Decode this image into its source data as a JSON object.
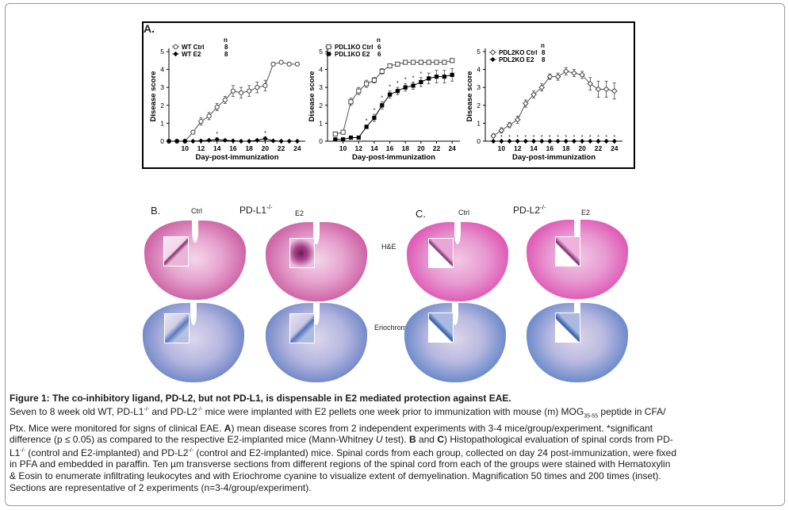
{
  "panel_a": {
    "label": "A.",
    "n_header": "n",
    "x_axis_label": "Day-post-immunization",
    "y_axis_label": "Disease score"
  },
  "chart_data": [
    {
      "type": "line",
      "title": "",
      "xlabel": "Day-post-immunization",
      "ylabel": "Disease score",
      "xlim": [
        8,
        25
      ],
      "ylim": [
        0,
        5
      ],
      "x_ticks": [
        10,
        12,
        14,
        16,
        18,
        20,
        22,
        24
      ],
      "y_ticks": [
        0,
        1,
        2,
        3,
        4,
        5
      ],
      "legend_position": "top-left",
      "series": [
        {
          "name": "WT Ctrl",
          "n": "8",
          "marker": "open-circle",
          "x": [
            8,
            9,
            10,
            11,
            12,
            13,
            14,
            15,
            16,
            17,
            18,
            19,
            20,
            21,
            22,
            23,
            24
          ],
          "values": [
            0,
            0,
            0,
            0.5,
            1.1,
            1.4,
            1.9,
            2.3,
            2.8,
            2.7,
            2.8,
            3.0,
            3.1,
            4.3,
            4.4,
            4.3,
            4.3
          ],
          "errors": [
            0,
            0,
            0,
            0.1,
            0.2,
            0.2,
            0.2,
            0.2,
            0.3,
            0.3,
            0.3,
            0.3,
            0.3,
            0.1,
            0,
            0.1,
            0.1
          ]
        },
        {
          "name": "WT E2",
          "n": "8",
          "marker": "filled-diamond",
          "x": [
            8,
            9,
            10,
            11,
            12,
            13,
            14,
            15,
            16,
            17,
            18,
            19,
            20,
            21,
            22,
            23,
            24
          ],
          "values": [
            0,
            0,
            0,
            0,
            0.02,
            0.05,
            0.1,
            0.05,
            0.02,
            0,
            0,
            0.05,
            0.15,
            0.02,
            0,
            0,
            0
          ],
          "errors": [
            0,
            0,
            0,
            0,
            0.02,
            0.04,
            0.08,
            0.04,
            0.02,
            0,
            0,
            0.04,
            0.08,
            0.02,
            0,
            0,
            0
          ]
        }
      ],
      "annotations": [
        {
          "x": 14,
          "text": "*"
        },
        {
          "x": 20,
          "text": "*"
        }
      ]
    },
    {
      "type": "line",
      "title": "",
      "xlabel": "Day-post-immunization",
      "ylabel": "Disease score",
      "xlim": [
        8,
        25
      ],
      "ylim": [
        0,
        5
      ],
      "x_ticks": [
        10,
        12,
        14,
        16,
        18,
        20,
        22,
        24
      ],
      "y_ticks": [
        0,
        1,
        2,
        3,
        4,
        5
      ],
      "legend_position": "top-left",
      "series": [
        {
          "name": "PDL1KO Ctrl",
          "n": "6",
          "marker": "open-square",
          "x": [
            9,
            10,
            11,
            12,
            13,
            14,
            15,
            16,
            17,
            18,
            19,
            20,
            21,
            22,
            23,
            24
          ],
          "values": [
            0.4,
            0.5,
            2.2,
            2.8,
            3.2,
            3.4,
            3.9,
            4.2,
            4.3,
            4.4,
            4.4,
            4.4,
            4.4,
            4.4,
            4.4,
            4.5
          ],
          "errors": [
            0.1,
            0.1,
            0.2,
            0.2,
            0.2,
            0.15,
            0.15,
            0.1,
            0.1,
            0.05,
            0.05,
            0.05,
            0.05,
            0.05,
            0.05,
            0.05
          ]
        },
        {
          "name": "PDL1KO E2",
          "n": "6",
          "marker": "filled-square",
          "x": [
            9,
            10,
            11,
            12,
            13,
            14,
            15,
            16,
            17,
            18,
            19,
            20,
            21,
            22,
            23,
            24
          ],
          "values": [
            0.1,
            0.1,
            0.2,
            0.2,
            0.8,
            1.3,
            2.0,
            2.6,
            2.8,
            3.0,
            3.1,
            3.3,
            3.5,
            3.6,
            3.6,
            3.7
          ],
          "errors": [
            0,
            0,
            0.05,
            0.05,
            0.1,
            0.2,
            0.2,
            0.2,
            0.2,
            0.2,
            0.2,
            0.25,
            0.3,
            0.35,
            0.35,
            0.35
          ]
        }
      ],
      "annotations": [
        {
          "x": 13,
          "text": "*"
        },
        {
          "x": 14,
          "text": "*"
        },
        {
          "x": 15,
          "text": "*"
        },
        {
          "x": 16,
          "text": "*"
        },
        {
          "x": 17,
          "text": "*"
        },
        {
          "x": 18,
          "text": "*"
        },
        {
          "x": 19,
          "text": "*"
        },
        {
          "x": 20,
          "text": "*"
        }
      ]
    },
    {
      "type": "line",
      "title": "",
      "xlabel": "Day-post-immunization",
      "ylabel": "Disease score",
      "xlim": [
        8,
        25
      ],
      "ylim": [
        0,
        5
      ],
      "x_ticks": [
        10,
        12,
        14,
        16,
        18,
        20,
        22,
        24
      ],
      "y_ticks": [
        0,
        1,
        2,
        3,
        4,
        5
      ],
      "legend_position": "top-left",
      "series": [
        {
          "name": "PDL2KO Ctrl",
          "n": "8",
          "marker": "open-diamond",
          "x": [
            9,
            10,
            11,
            12,
            13,
            14,
            15,
            16,
            17,
            18,
            19,
            20,
            21,
            22,
            23,
            24
          ],
          "values": [
            0.3,
            0.6,
            0.9,
            1.2,
            2.1,
            2.6,
            3.0,
            3.6,
            3.6,
            3.9,
            3.8,
            3.7,
            3.2,
            2.9,
            2.9,
            2.8
          ],
          "errors": [
            0.1,
            0.15,
            0.15,
            0.2,
            0.2,
            0.2,
            0.2,
            0.15,
            0.2,
            0.2,
            0.2,
            0.2,
            0.35,
            0.45,
            0.45,
            0.45
          ]
        },
        {
          "name": "PDL2KO E2",
          "n": "8",
          "marker": "filled-diamond",
          "x": [
            9,
            10,
            11,
            12,
            13,
            14,
            15,
            16,
            17,
            18,
            19,
            20,
            21,
            22,
            23,
            24
          ],
          "values": [
            0,
            0,
            0,
            0,
            0,
            0,
            0,
            0,
            0,
            0,
            0,
            0,
            0,
            0,
            0,
            0
          ],
          "errors": [
            0,
            0,
            0,
            0,
            0,
            0,
            0,
            0,
            0,
            0,
            0,
            0,
            0,
            0,
            0,
            0
          ]
        }
      ],
      "annotations": [
        {
          "x": 10,
          "text": "*"
        },
        {
          "x": 11,
          "text": "*"
        },
        {
          "x": 12,
          "text": "*"
        },
        {
          "x": 13,
          "text": "*"
        },
        {
          "x": 14,
          "text": "*"
        },
        {
          "x": 15,
          "text": "*"
        },
        {
          "x": 16,
          "text": "*"
        },
        {
          "x": 17,
          "text": "*"
        },
        {
          "x": 18,
          "text": "*"
        },
        {
          "x": 19,
          "text": "*"
        },
        {
          "x": 20,
          "text": "*"
        },
        {
          "x": 21,
          "text": "*"
        },
        {
          "x": 22,
          "text": "*"
        },
        {
          "x": 23,
          "text": "*"
        },
        {
          "x": 24,
          "text": "*"
        }
      ]
    }
  ],
  "panel_b": {
    "label": "B.",
    "title": "PD-L1",
    "superscript": "-/-",
    "ctrl": "Ctrl",
    "e2": "E2"
  },
  "panel_c": {
    "label": "C.",
    "title": "PD-L2",
    "superscript": "-/-",
    "ctrl": "Ctrl",
    "e2": "E2"
  },
  "stains": {
    "he": "H&E",
    "eriochrome": "Eriochrome"
  },
  "colors": {
    "he_pink": "#d86fb4",
    "eriochrome_blue": "#4a6fb8",
    "axis": "#000000"
  },
  "caption": {
    "title": "Figure 1: The co-inhibitory ligand, PD-L2, but not PD-L1, is dispensable in E2 mediated protection against EAE.",
    "l1a": "Seven to 8 week old WT, PD-L1",
    "l1b": " and PD-L2",
    "l1c": " mice were implanted with E2 pellets one week prior to immunization with mouse (m) MOG",
    "l1d": " peptide in CFA/",
    "l2a": "Ptx. Mice were monitored for signs of clinical EAE. ",
    "l2b": "A",
    "l2c": ") mean disease scores from 2 independent experiments with 3-4 mice/group/experiment. *significant",
    "l3a": "difference (p ≤ 0.05) as compared to the respective E2-implanted mice (Mann-Whitney ",
    "l3b": "U",
    "l3c": " test). ",
    "l3d": "B",
    "l3e": " and ",
    "l3f": "C",
    "l3g": ") Histopathological evaluation of spinal cords from PD-",
    "l4a": "L1",
    "l4b": " (control and E2-implanted) and PD-L2",
    "l4c": " (control and E2-implanted) mice. Spinal cords from each group, collected on day 24 post-immunization, were fixed",
    "l5": "in PFA and embedded in paraffin. Ten µm transverse sections from different regions of the spinal cord from each of the groups were stained with Hematoxylin",
    "l6": "& Eosin to enumerate infiltrating leukocytes and with Eriochrome cyanine to visualize extent of demyelination. Magnification 50 times and 200 times (inset).",
    "l7": "Sections are representative of 2 experiments (n=3-4/group/experiment).",
    "ko_sup": "-/-",
    "mog_sub": "35-55"
  }
}
